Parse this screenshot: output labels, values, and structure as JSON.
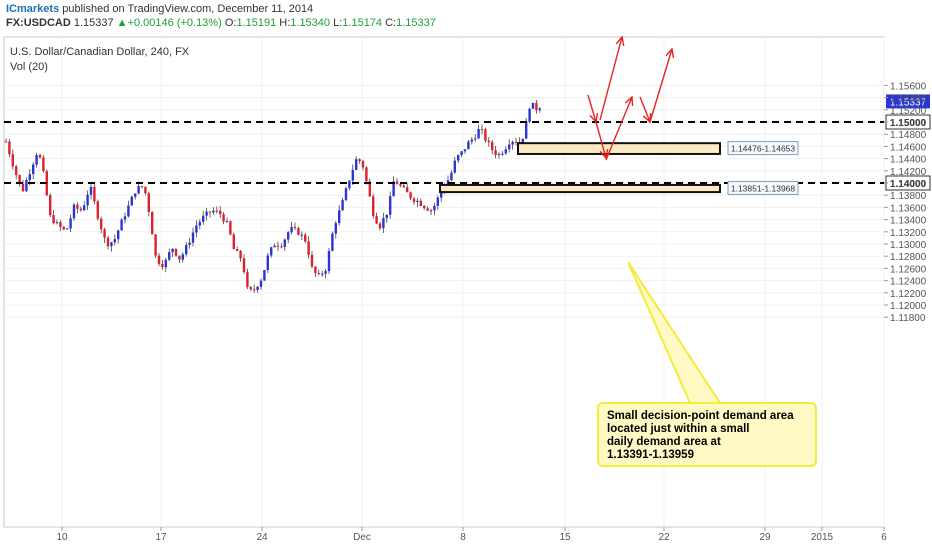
{
  "header": {
    "brand": "ICmarkets",
    "published": " published on TradingView.com, December 11, 2014",
    "symbol": "FX:USDCAD",
    "last": "1.15337",
    "change": "+0.00146 (+0.13%)",
    "o_label": "O:",
    "o_value": "1.15191",
    "h_label": "H:",
    "h_value": "1.15340",
    "l_label": "L:",
    "l_value": "1.15174",
    "c_label": "C:",
    "c_value": "1.15337"
  },
  "chart": {
    "title": "U.S. Dollar/Canadian Dollar, 240, FX",
    "indicator": "Vol (20)",
    "current_price_label": "1.15337",
    "annotation_lines": [
      "Small decision-point demand area",
      "located just within a small",
      "daily demand area at",
      "1.13391-1.13959"
    ]
  },
  "chart_data": {
    "type": "candlestick",
    "instrument": "USDCAD",
    "timeframe": "240",
    "ylim": [
      1.1172,
      1.157
    ],
    "y_ticks": [
      "1.15600",
      "1.15400",
      "1.15200",
      "1.15000",
      "1.14800",
      "1.14600",
      "1.14400",
      "1.14200",
      "1.14000",
      "1.13800",
      "1.13600",
      "1.13400",
      "1.13200",
      "1.13000",
      "1.12800",
      "1.12600",
      "1.12400",
      "1.12200",
      "1.12000",
      "1.11800"
    ],
    "x_ticks": [
      "10",
      "17",
      "24",
      "Dec",
      "8",
      "15",
      "22",
      "29",
      "2015",
      "6"
    ],
    "horizontal_levels": [
      {
        "price": 1.15,
        "label": "1.15000",
        "style": "dashed"
      },
      {
        "price": 1.14,
        "label": "1.14000",
        "style": "dashed"
      }
    ],
    "zones": [
      {
        "label": "1.14476-1.14653",
        "low": 1.14476,
        "high": 1.14653
      },
      {
        "label": "1.13851-1.13968",
        "low": 1.13851,
        "high": 1.13968
      }
    ],
    "last_price": 1.15337,
    "colors": {
      "up": "#2a35d6",
      "down": "#e0202e",
      "level": "#000000",
      "zone_fill": "#fde9c2",
      "zone_border": "#111111",
      "arrow": "#e52421",
      "note_border": "#f2ec3a",
      "note_fill": "#fff9c4"
    }
  }
}
